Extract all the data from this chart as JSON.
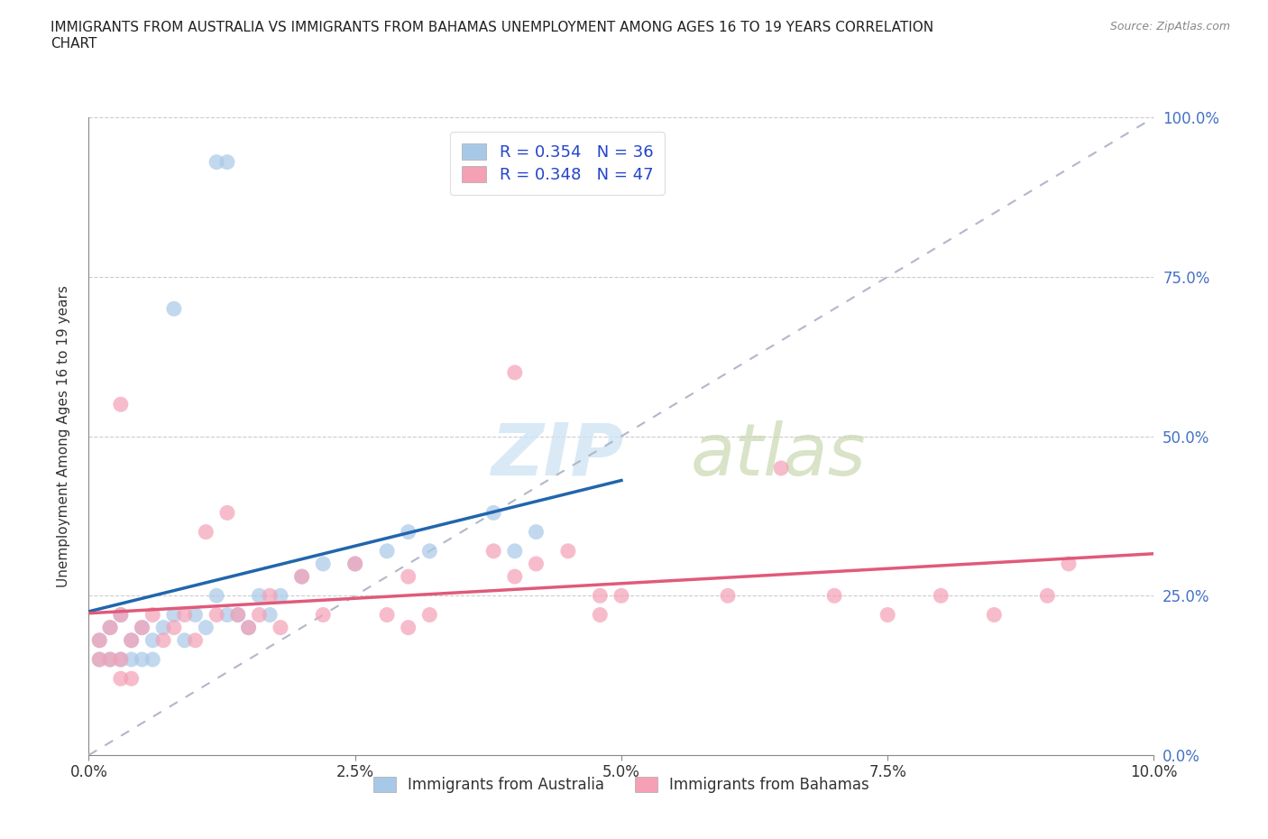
{
  "title": "IMMIGRANTS FROM AUSTRALIA VS IMMIGRANTS FROM BAHAMAS UNEMPLOYMENT AMONG AGES 16 TO 19 YEARS CORRELATION\nCHART",
  "source": "Source: ZipAtlas.com",
  "ylabel": "Unemployment Among Ages 16 to 19 years",
  "xlim": [
    0.0,
    0.1
  ],
  "ylim": [
    0.0,
    1.0
  ],
  "xticks": [
    0.0,
    0.025,
    0.05,
    0.075,
    0.1
  ],
  "xticklabels": [
    "0.0%",
    "2.5%",
    "5.0%",
    "7.5%",
    "10.0%"
  ],
  "yticks": [
    0.0,
    0.25,
    0.5,
    0.75,
    1.0
  ],
  "yticklabels": [
    "0.0%",
    "25.0%",
    "50.0%",
    "75.0%",
    "100.0%"
  ],
  "australia_color": "#a8c8e8",
  "bahamas_color": "#f4a0b5",
  "australia_line_color": "#2166ac",
  "bahamas_line_color": "#e05a7a",
  "diag_line_color": "#b0b8c8",
  "R_australia": 0.354,
  "N_australia": 36,
  "R_bahamas": 0.348,
  "N_bahamas": 47,
  "aus_legend_label": "Immigrants from Australia",
  "bah_legend_label": "Immigrants from Bahamas",
  "aus_x": [
    0.012,
    0.013,
    0.008,
    0.001,
    0.002,
    0.003,
    0.004,
    0.005,
    0.006,
    0.007,
    0.008,
    0.009,
    0.01,
    0.011,
    0.012,
    0.013,
    0.014,
    0.015,
    0.016,
    0.017,
    0.018,
    0.02,
    0.022,
    0.025,
    0.028,
    0.03,
    0.032,
    0.038,
    0.04,
    0.042,
    0.001,
    0.002,
    0.003,
    0.004,
    0.005,
    0.006
  ],
  "aus_y": [
    0.93,
    0.93,
    0.7,
    0.18,
    0.2,
    0.22,
    0.18,
    0.2,
    0.18,
    0.2,
    0.22,
    0.18,
    0.22,
    0.2,
    0.25,
    0.22,
    0.22,
    0.2,
    0.25,
    0.22,
    0.25,
    0.28,
    0.3,
    0.3,
    0.32,
    0.35,
    0.32,
    0.38,
    0.32,
    0.35,
    0.15,
    0.15,
    0.15,
    0.15,
    0.15,
    0.15
  ],
  "bah_x": [
    0.04,
    0.003,
    0.001,
    0.002,
    0.003,
    0.004,
    0.005,
    0.006,
    0.007,
    0.008,
    0.009,
    0.01,
    0.011,
    0.012,
    0.013,
    0.014,
    0.015,
    0.016,
    0.017,
    0.018,
    0.02,
    0.022,
    0.025,
    0.028,
    0.03,
    0.032,
    0.038,
    0.04,
    0.042,
    0.045,
    0.048,
    0.05,
    0.06,
    0.065,
    0.07,
    0.075,
    0.08,
    0.085,
    0.09,
    0.092,
    0.048,
    0.03,
    0.001,
    0.002,
    0.003,
    0.003,
    0.004
  ],
  "bah_y": [
    0.6,
    0.55,
    0.18,
    0.2,
    0.22,
    0.18,
    0.2,
    0.22,
    0.18,
    0.2,
    0.22,
    0.18,
    0.35,
    0.22,
    0.38,
    0.22,
    0.2,
    0.22,
    0.25,
    0.2,
    0.28,
    0.22,
    0.3,
    0.22,
    0.28,
    0.22,
    0.32,
    0.28,
    0.3,
    0.32,
    0.25,
    0.25,
    0.25,
    0.45,
    0.25,
    0.22,
    0.25,
    0.22,
    0.25,
    0.3,
    0.22,
    0.2,
    0.15,
    0.15,
    0.12,
    0.15,
    0.12
  ]
}
